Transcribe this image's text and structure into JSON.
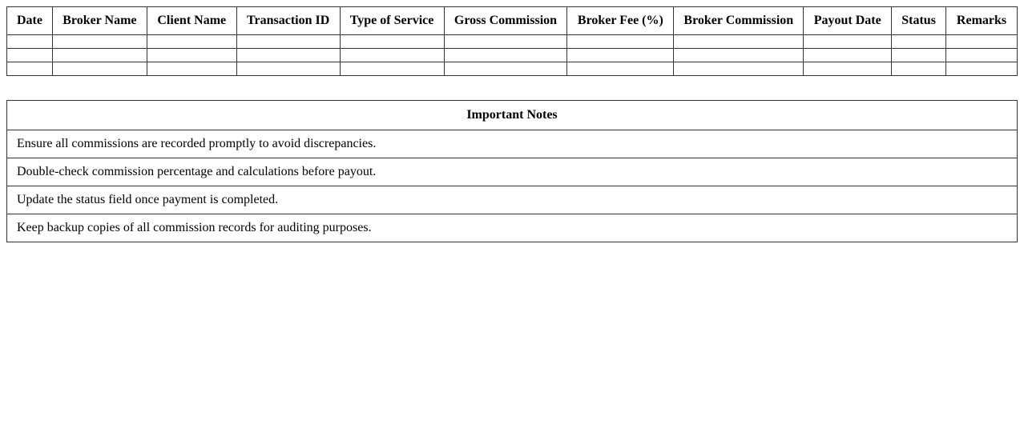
{
  "commission_table": {
    "headers": [
      "Date",
      "Broker Name",
      "Client Name",
      "Transaction ID",
      "Type of Service",
      "Gross Commission",
      "Broker Fee (%)",
      "Broker Commission",
      "Payout Date",
      "Status",
      "Remarks"
    ],
    "rows": [
      [
        "",
        "",
        "",
        "",
        "",
        "",
        "",
        "",
        "",
        "",
        ""
      ],
      [
        "",
        "",
        "",
        "",
        "",
        "",
        "",
        "",
        "",
        "",
        ""
      ],
      [
        "",
        "",
        "",
        "",
        "",
        "",
        "",
        "",
        "",
        "",
        ""
      ]
    ]
  },
  "notes": {
    "title": "Important Notes",
    "items": [
      "Ensure all commissions are recorded promptly to avoid discrepancies.",
      "Double-check commission percentage and calculations before payout.",
      "Update the status field once payment is completed.",
      "Keep backup copies of all commission records for auditing purposes."
    ]
  }
}
